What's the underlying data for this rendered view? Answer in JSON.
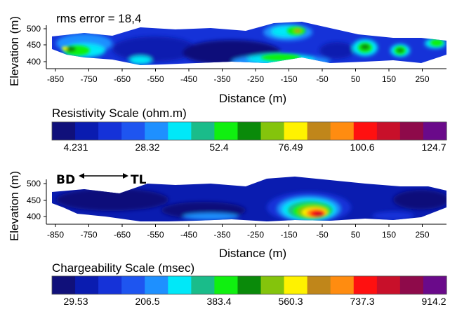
{
  "resistivity_section": {
    "annotation": "rms error = 18,4",
    "ylabel": "Elevation (m)",
    "xlabel": "Distance (m)",
    "yticks": [
      "500",
      "450",
      "400"
    ],
    "xticks": [
      "-850",
      "-750",
      "-650",
      "-550",
      "-450",
      "-350",
      "-250",
      "-150",
      "-50",
      "50",
      "150",
      "250"
    ]
  },
  "resistivity_scale": {
    "title": "Resistivity Scale (ohm.m)",
    "labels": [
      "4.231",
      "28.32",
      "52.4",
      "76.49",
      "100.6",
      "124.7"
    ]
  },
  "chargeability_section": {
    "left_label": "BD",
    "right_label": "TL",
    "ylabel": "Elevation (m)",
    "xlabel": "Distance (m)",
    "yticks": [
      "500",
      "450",
      "400"
    ],
    "xticks": [
      "-850",
      "-750",
      "-650",
      "-550",
      "-450",
      "-350",
      "-250",
      "-150",
      "-50",
      "50",
      "150",
      "250"
    ]
  },
  "chargeability_scale": {
    "title": "Chargeability Scale (msec)",
    "labels": [
      "29.53",
      "206.5",
      "383.4",
      "560.3",
      "737.3",
      "914.2"
    ]
  },
  "colors": [
    "#10107a",
    "#0a1cb0",
    "#1532d8",
    "#1e55f0",
    "#1e90ff",
    "#00e8f8",
    "#1abc8a",
    "#10f010",
    "#0a8a0a",
    "#84c40c",
    "#fff200",
    "#c0861a",
    "#ff8c10",
    "#ff1010",
    "#c8102a",
    "#8e0a4a",
    "#6a0a8a"
  ]
}
